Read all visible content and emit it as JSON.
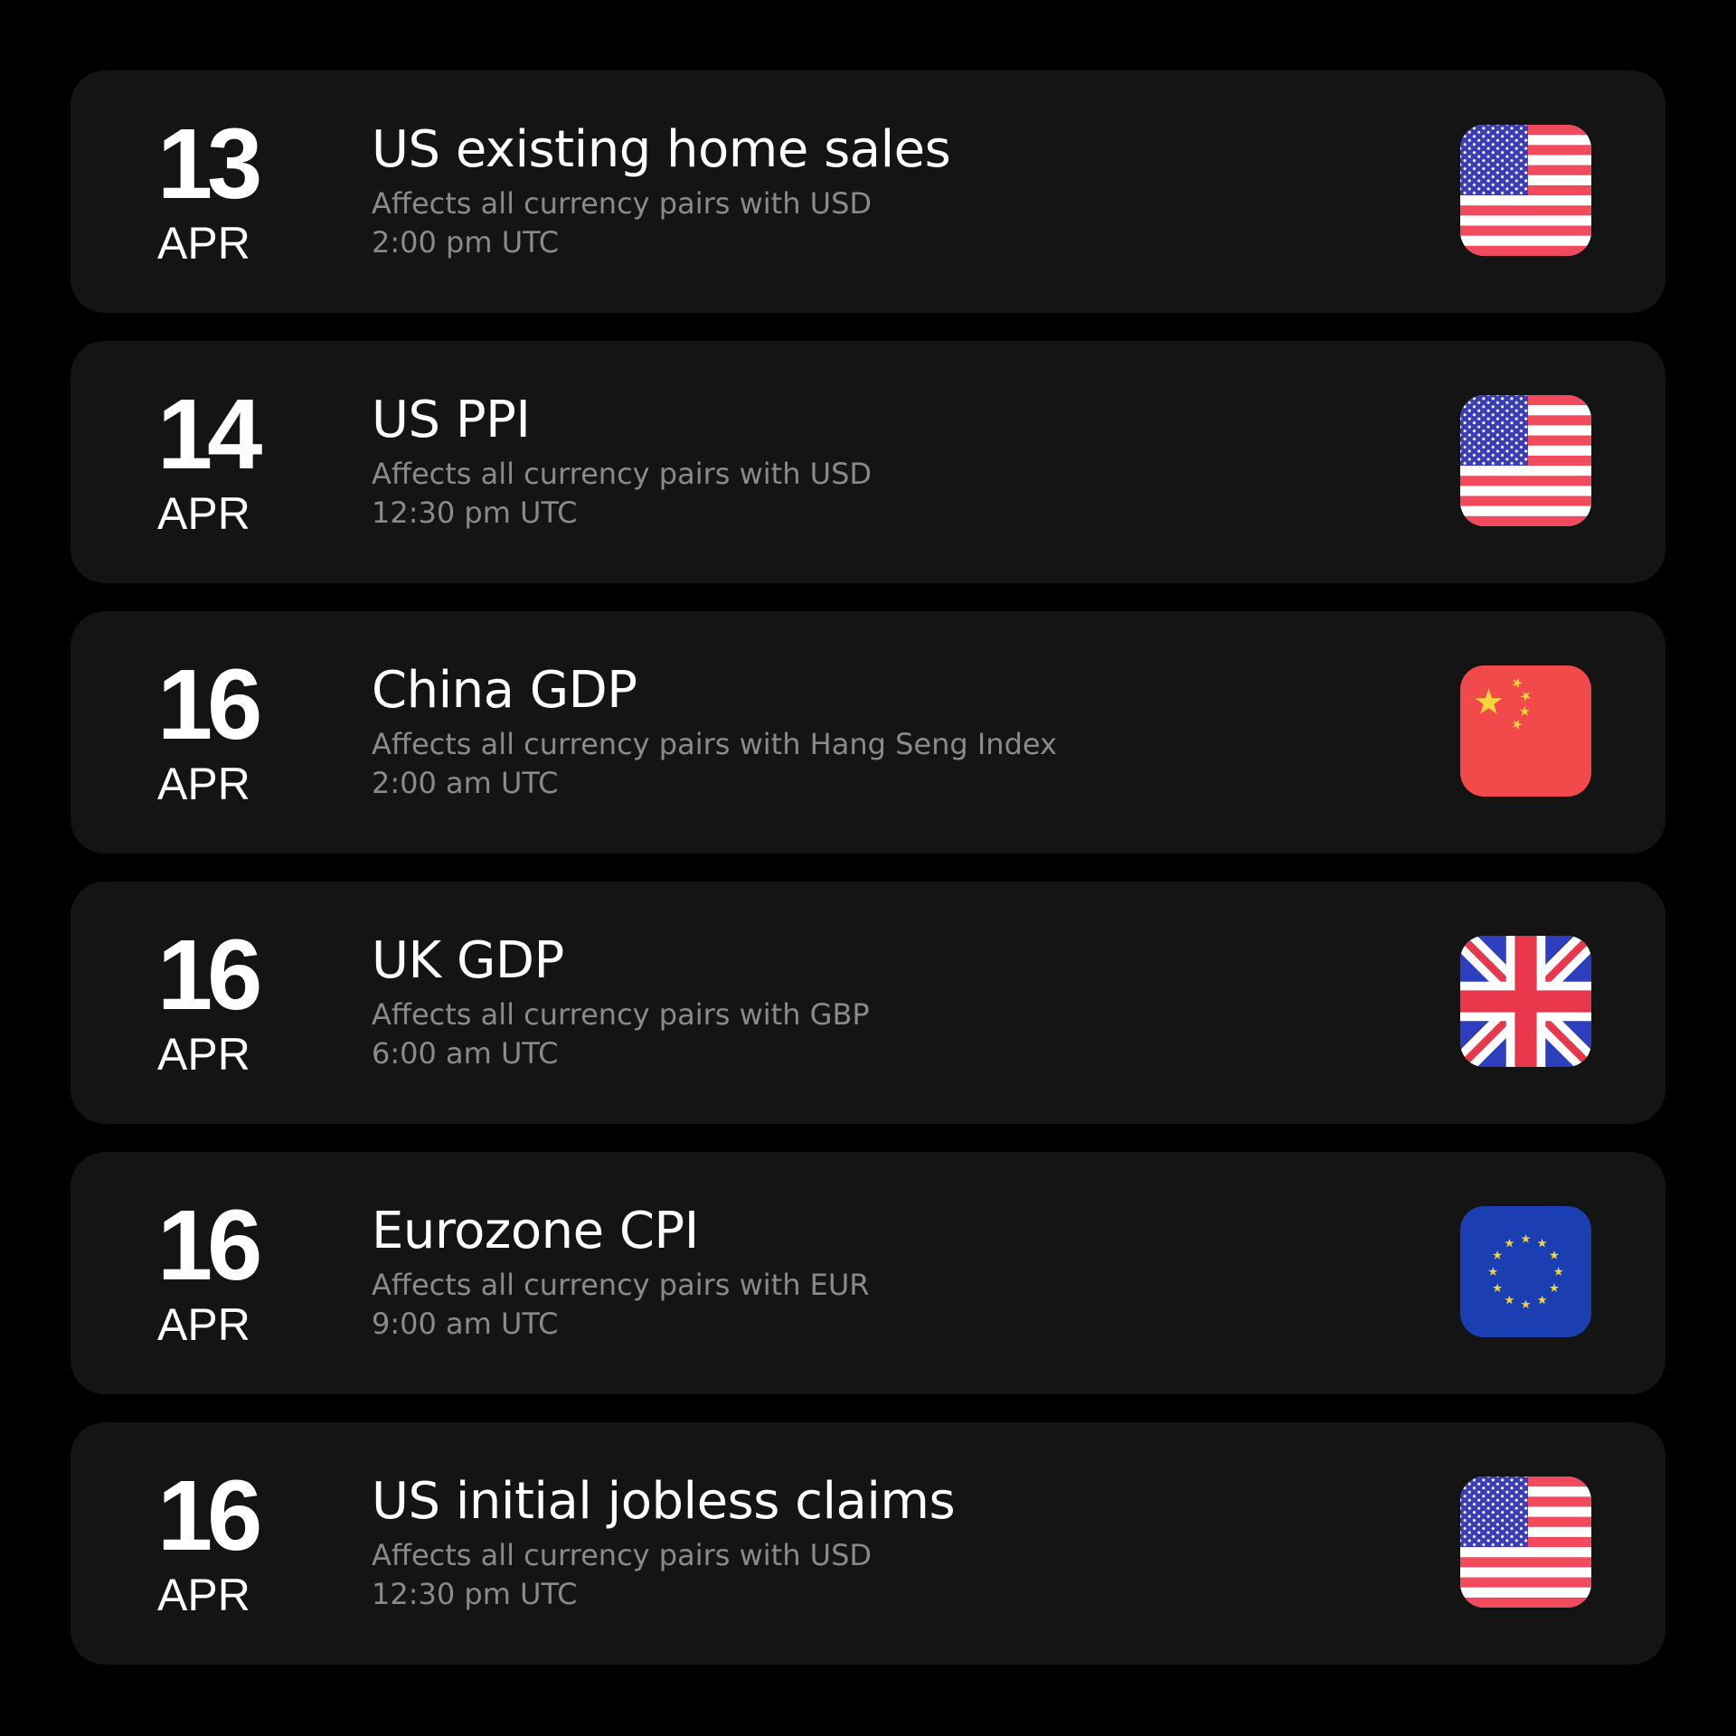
{
  "events": [
    {
      "day": 13,
      "month": "APR",
      "title": "US existing home sales",
      "affects": "Affects all currency pairs with USD",
      "time": "2:00 pm UTC"
    },
    {
      "day": 14,
      "month": "APR",
      "title": "US PPI",
      "affects": "Affects all currency pairs with USD",
      "time": "12:30 pm UTC"
    },
    {
      "day": 16,
      "month": "APR",
      "title": "China GDP",
      "affects": "Affects all currency pairs with Hang Seng Index",
      "time": "2:00 am UTC"
    },
    {
      "day": 16,
      "month": "APR",
      "title": "UK GDP",
      "affects": "Affects all currency pairs with GBP",
      "time": "6:00 am UTC"
    },
    {
      "day": 16,
      "month": "APR",
      "title": "Eurozone CPI",
      "affects": "Affects all currency pairs with EUR",
      "time": "9:00 am UTC"
    },
    {
      "day": 16,
      "month": "APR",
      "title": "US initial jobless claims",
      "affects": "Affects all currency pairs with USD",
      "time": "12:30 pm UTC"
    }
  ]
}
